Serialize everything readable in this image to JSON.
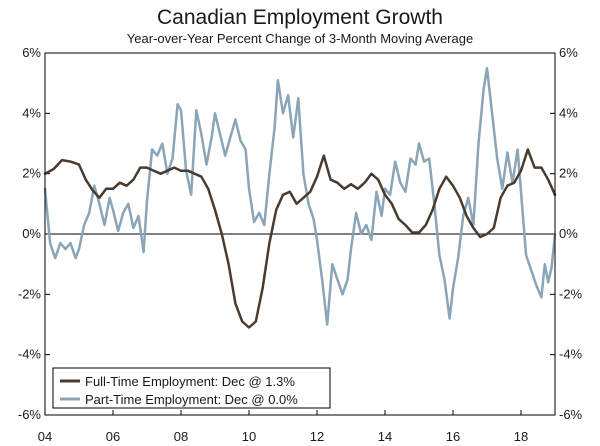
{
  "chart_data": {
    "type": "line",
    "title": "Canadian Employment Growth",
    "subtitle": "Year-over-Year Percent Change of 3-Month Moving Average",
    "xlabel": "",
    "ylabel": "",
    "x_ticks": [
      "04",
      "06",
      "08",
      "10",
      "12",
      "14",
      "16",
      "18"
    ],
    "x_tick_values": [
      2004,
      2006,
      2008,
      2010,
      2012,
      2014,
      2016,
      2018
    ],
    "xlim": [
      2004,
      2019
    ],
    "ylim": [
      -6,
      6
    ],
    "y_ticks": [
      6,
      4,
      2,
      0,
      -2,
      -4,
      -6
    ],
    "y_tick_labels": [
      "6%",
      "4%",
      "2%",
      "0%",
      "-2%",
      "-4%",
      "-6%"
    ],
    "grid": false,
    "zero_line": true,
    "legend_position": "bottom-left",
    "series": [
      {
        "name": "Full-Time Employment: Dec @ 1.3%",
        "color": "#4a3b2f",
        "points": [
          [
            2004.0,
            2.0
          ],
          [
            2004.25,
            2.15
          ],
          [
            2004.5,
            2.45
          ],
          [
            2004.75,
            2.4
          ],
          [
            2005.0,
            2.3
          ],
          [
            2005.2,
            1.8
          ],
          [
            2005.4,
            1.45
          ],
          [
            2005.6,
            1.2
          ],
          [
            2005.8,
            1.5
          ],
          [
            2006.0,
            1.5
          ],
          [
            2006.2,
            1.7
          ],
          [
            2006.4,
            1.6
          ],
          [
            2006.6,
            1.8
          ],
          [
            2006.8,
            2.2
          ],
          [
            2007.0,
            2.2
          ],
          [
            2007.2,
            2.1
          ],
          [
            2007.4,
            2.0
          ],
          [
            2007.6,
            2.1
          ],
          [
            2007.8,
            2.2
          ],
          [
            2008.0,
            2.1
          ],
          [
            2008.2,
            2.1
          ],
          [
            2008.4,
            2.0
          ],
          [
            2008.6,
            1.9
          ],
          [
            2008.8,
            1.5
          ],
          [
            2009.0,
            0.8
          ],
          [
            2009.2,
            0.0
          ],
          [
            2009.4,
            -1.0
          ],
          [
            2009.6,
            -2.3
          ],
          [
            2009.8,
            -2.9
          ],
          [
            2010.0,
            -3.1
          ],
          [
            2010.2,
            -2.9
          ],
          [
            2010.4,
            -1.8
          ],
          [
            2010.6,
            -0.3
          ],
          [
            2010.8,
            0.8
          ],
          [
            2011.0,
            1.3
          ],
          [
            2011.2,
            1.4
          ],
          [
            2011.4,
            1.0
          ],
          [
            2011.6,
            1.2
          ],
          [
            2011.8,
            1.4
          ],
          [
            2012.0,
            1.9
          ],
          [
            2012.2,
            2.6
          ],
          [
            2012.4,
            1.8
          ],
          [
            2012.6,
            1.7
          ],
          [
            2012.8,
            1.5
          ],
          [
            2013.0,
            1.65
          ],
          [
            2013.2,
            1.5
          ],
          [
            2013.4,
            1.7
          ],
          [
            2013.6,
            2.0
          ],
          [
            2013.8,
            1.8
          ],
          [
            2014.0,
            1.3
          ],
          [
            2014.2,
            1.0
          ],
          [
            2014.4,
            0.5
          ],
          [
            2014.6,
            0.3
          ],
          [
            2014.8,
            0.05
          ],
          [
            2015.0,
            0.05
          ],
          [
            2015.2,
            0.3
          ],
          [
            2015.4,
            0.8
          ],
          [
            2015.6,
            1.5
          ],
          [
            2015.8,
            1.9
          ],
          [
            2016.0,
            1.6
          ],
          [
            2016.2,
            1.2
          ],
          [
            2016.4,
            0.6
          ],
          [
            2016.6,
            0.2
          ],
          [
            2016.8,
            -0.1
          ],
          [
            2017.0,
            0.0
          ],
          [
            2017.2,
            0.2
          ],
          [
            2017.4,
            1.2
          ],
          [
            2017.6,
            1.6
          ],
          [
            2017.8,
            1.7
          ],
          [
            2018.0,
            2.1
          ],
          [
            2018.2,
            2.8
          ],
          [
            2018.4,
            2.2
          ],
          [
            2018.6,
            2.2
          ],
          [
            2018.8,
            1.8
          ],
          [
            2019.0,
            1.3
          ]
        ]
      },
      {
        "name": "Part-Time Employment: Dec @ 0.0%",
        "color": "#8aa5b8",
        "points": [
          [
            2004.0,
            1.5
          ],
          [
            2004.15,
            -0.3
          ],
          [
            2004.3,
            -0.8
          ],
          [
            2004.45,
            -0.3
          ],
          [
            2004.6,
            -0.5
          ],
          [
            2004.75,
            -0.3
          ],
          [
            2004.9,
            -0.8
          ],
          [
            2005.0,
            -0.5
          ],
          [
            2005.15,
            0.3
          ],
          [
            2005.3,
            0.7
          ],
          [
            2005.45,
            1.6
          ],
          [
            2005.6,
            1.0
          ],
          [
            2005.75,
            0.3
          ],
          [
            2005.9,
            1.2
          ],
          [
            2006.0,
            0.8
          ],
          [
            2006.15,
            0.1
          ],
          [
            2006.3,
            0.7
          ],
          [
            2006.45,
            1.0
          ],
          [
            2006.6,
            0.2
          ],
          [
            2006.75,
            0.6
          ],
          [
            2006.9,
            -0.6
          ],
          [
            2007.0,
            1.1
          ],
          [
            2007.15,
            2.8
          ],
          [
            2007.3,
            2.6
          ],
          [
            2007.45,
            3.0
          ],
          [
            2007.6,
            2.0
          ],
          [
            2007.75,
            2.5
          ],
          [
            2007.9,
            4.3
          ],
          [
            2008.0,
            4.1
          ],
          [
            2008.15,
            2.1
          ],
          [
            2008.3,
            1.3
          ],
          [
            2008.45,
            4.1
          ],
          [
            2008.6,
            3.3
          ],
          [
            2008.75,
            2.3
          ],
          [
            2008.9,
            3.2
          ],
          [
            2009.0,
            4.0
          ],
          [
            2009.15,
            3.3
          ],
          [
            2009.3,
            2.6
          ],
          [
            2009.45,
            3.2
          ],
          [
            2009.6,
            3.8
          ],
          [
            2009.75,
            3.1
          ],
          [
            2009.9,
            2.8
          ],
          [
            2010.0,
            1.5
          ],
          [
            2010.15,
            0.4
          ],
          [
            2010.3,
            0.7
          ],
          [
            2010.45,
            0.3
          ],
          [
            2010.6,
            2.0
          ],
          [
            2010.75,
            3.5
          ],
          [
            2010.85,
            5.1
          ],
          [
            2011.0,
            4.0
          ],
          [
            2011.15,
            4.6
          ],
          [
            2011.3,
            3.2
          ],
          [
            2011.45,
            4.5
          ],
          [
            2011.6,
            2.0
          ],
          [
            2011.75,
            1.0
          ],
          [
            2011.9,
            0.5
          ],
          [
            2012.0,
            -0.2
          ],
          [
            2012.15,
            -1.5
          ],
          [
            2012.3,
            -3.0
          ],
          [
            2012.45,
            -1.0
          ],
          [
            2012.6,
            -1.5
          ],
          [
            2012.75,
            -2.0
          ],
          [
            2012.9,
            -1.5
          ],
          [
            2013.0,
            -0.5
          ],
          [
            2013.15,
            0.7
          ],
          [
            2013.3,
            0.0
          ],
          [
            2013.45,
            0.3
          ],
          [
            2013.6,
            -0.2
          ],
          [
            2013.75,
            1.4
          ],
          [
            2013.9,
            0.6
          ],
          [
            2014.0,
            1.5
          ],
          [
            2014.15,
            1.3
          ],
          [
            2014.3,
            2.4
          ],
          [
            2014.45,
            1.7
          ],
          [
            2014.6,
            1.4
          ],
          [
            2014.75,
            2.5
          ],
          [
            2014.9,
            2.3
          ],
          [
            2015.0,
            3.0
          ],
          [
            2015.15,
            2.4
          ],
          [
            2015.3,
            2.5
          ],
          [
            2015.45,
            1.0
          ],
          [
            2015.6,
            -0.7
          ],
          [
            2015.75,
            -1.5
          ],
          [
            2015.9,
            -2.8
          ],
          [
            2016.0,
            -1.8
          ],
          [
            2016.15,
            -0.8
          ],
          [
            2016.3,
            0.6
          ],
          [
            2016.45,
            1.2
          ],
          [
            2016.6,
            0.3
          ],
          [
            2016.75,
            3.0
          ],
          [
            2016.9,
            4.8
          ],
          [
            2017.0,
            5.5
          ],
          [
            2017.15,
            4.0
          ],
          [
            2017.3,
            2.5
          ],
          [
            2017.45,
            1.5
          ],
          [
            2017.6,
            2.7
          ],
          [
            2017.75,
            1.7
          ],
          [
            2017.9,
            2.8
          ],
          [
            2018.0,
            1.4
          ],
          [
            2018.15,
            -0.7
          ],
          [
            2018.3,
            -1.2
          ],
          [
            2018.45,
            -1.7
          ],
          [
            2018.6,
            -2.1
          ],
          [
            2018.7,
            -1.0
          ],
          [
            2018.8,
            -1.6
          ],
          [
            2018.9,
            -1.1
          ],
          [
            2019.0,
            0.0
          ]
        ]
      }
    ]
  }
}
